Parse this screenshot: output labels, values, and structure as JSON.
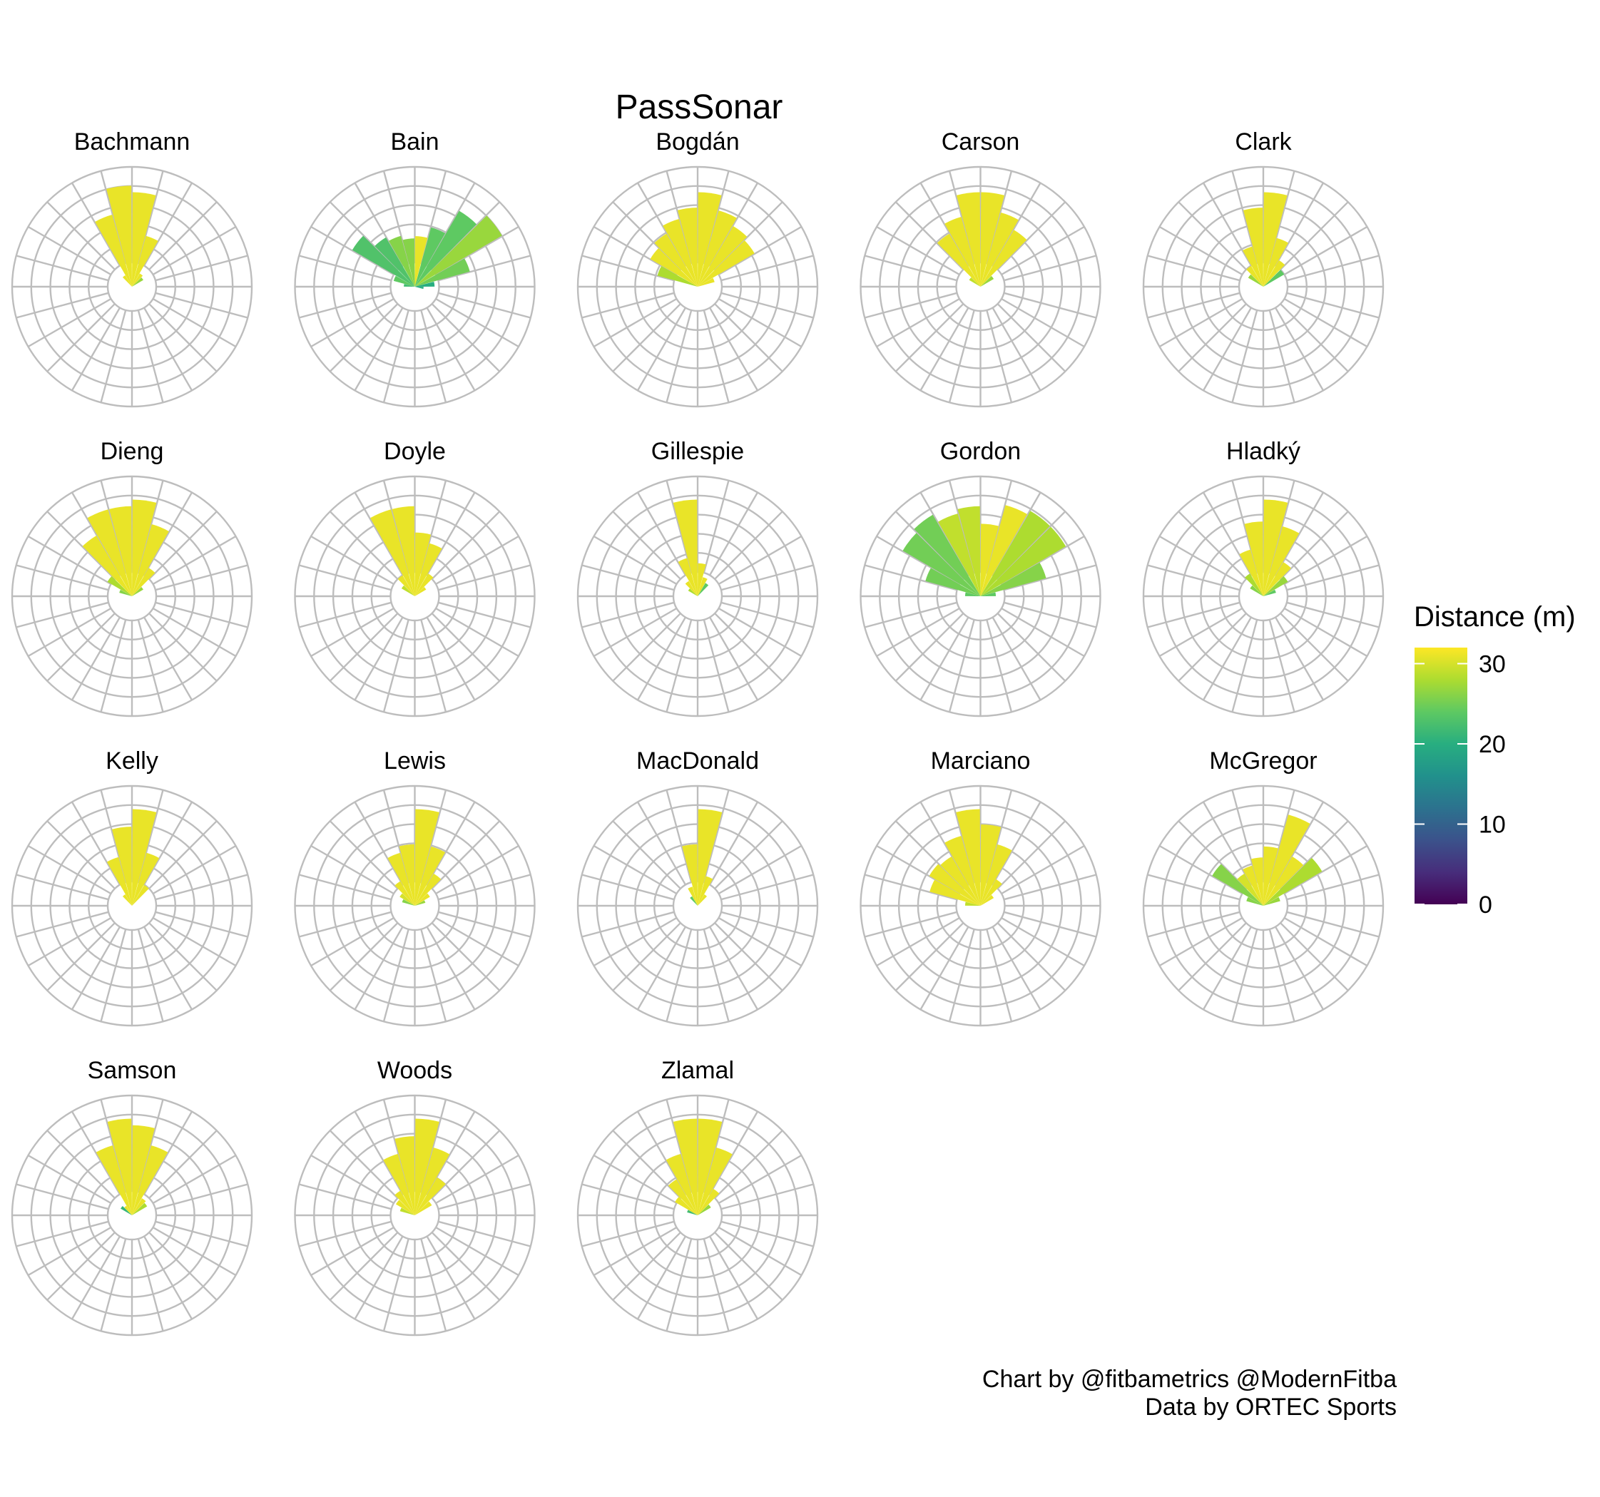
{
  "chart_data": {
    "type": "polar-bar",
    "title": "PassSonar",
    "legend": {
      "title": "Distance (m)",
      "placement": "right",
      "ticks": [
        0,
        10,
        20,
        30
      ],
      "range": [
        0,
        32
      ],
      "colormap": "viridis"
    },
    "radial_axis": {
      "max": 1.0,
      "rings": 5,
      "unit": "share of passes (relative)"
    },
    "angular_axis": {
      "bins": 24,
      "bin_width_deg": 15,
      "zero": "up",
      "direction": "clockwise"
    },
    "grid": true,
    "caption": [
      "Chart by @fitbametrics @ModernFitba",
      "Data by ORTEC Sports"
    ],
    "panels": [
      {
        "name": "Bachmann",
        "bars": [
          {
            "angle": 7.5,
            "length": 0.86,
            "distance": 31
          },
          {
            "angle": 22.5,
            "length": 0.48,
            "distance": 31
          },
          {
            "angle": 37.5,
            "length": 0.14,
            "distance": 31
          },
          {
            "angle": 52.5,
            "length": 0.12,
            "distance": 27
          },
          {
            "angle": -7.5,
            "length": 0.92,
            "distance": 31
          },
          {
            "angle": -22.5,
            "length": 0.68,
            "distance": 31
          },
          {
            "angle": -37.5,
            "length": 0.12,
            "distance": 31
          }
        ]
      },
      {
        "name": "Bain",
        "bars": [
          {
            "angle": 7.5,
            "length": 0.46,
            "distance": 31
          },
          {
            "angle": 22.5,
            "length": 0.56,
            "distance": 24
          },
          {
            "angle": 37.5,
            "length": 0.8,
            "distance": 24
          },
          {
            "angle": 52.5,
            "length": 0.92,
            "distance": 27
          },
          {
            "angle": 67.5,
            "length": 0.52,
            "distance": 25
          },
          {
            "angle": 82.5,
            "length": 0.18,
            "distance": 20
          },
          {
            "angle": 97.5,
            "length": 0.08,
            "distance": 20
          },
          {
            "angle": -7.5,
            "length": 0.44,
            "distance": 26
          },
          {
            "angle": -22.5,
            "length": 0.48,
            "distance": 26
          },
          {
            "angle": -37.5,
            "length": 0.52,
            "distance": 23
          },
          {
            "angle": -52.5,
            "length": 0.66,
            "distance": 23
          },
          {
            "angle": -67.5,
            "length": 0.2,
            "distance": 24
          },
          {
            "angle": -82.5,
            "length": 0.1,
            "distance": 22
          }
        ]
      },
      {
        "name": "Bogdán",
        "bars": [
          {
            "angle": 7.5,
            "length": 0.86,
            "distance": 31
          },
          {
            "angle": 22.5,
            "length": 0.72,
            "distance": 31
          },
          {
            "angle": 37.5,
            "length": 0.64,
            "distance": 31
          },
          {
            "angle": 52.5,
            "length": 0.6,
            "distance": 31
          },
          {
            "angle": 67.5,
            "length": 0.16,
            "distance": 31
          },
          {
            "angle": -7.5,
            "length": 0.72,
            "distance": 31
          },
          {
            "angle": -22.5,
            "length": 0.64,
            "distance": 31
          },
          {
            "angle": -37.5,
            "length": 0.56,
            "distance": 31
          },
          {
            "angle": -52.5,
            "length": 0.5,
            "distance": 31
          },
          {
            "angle": -67.5,
            "length": 0.38,
            "distance": 28
          }
        ]
      },
      {
        "name": "Carson",
        "bars": [
          {
            "angle": 7.5,
            "length": 0.86,
            "distance": 31
          },
          {
            "angle": 22.5,
            "length": 0.7,
            "distance": 31
          },
          {
            "angle": 37.5,
            "length": 0.6,
            "distance": 31
          },
          {
            "angle": 52.5,
            "length": 0.14,
            "distance": 27
          },
          {
            "angle": -7.5,
            "length": 0.86,
            "distance": 31
          },
          {
            "angle": -22.5,
            "length": 0.66,
            "distance": 31
          },
          {
            "angle": -37.5,
            "length": 0.56,
            "distance": 31
          },
          {
            "angle": -52.5,
            "length": 0.12,
            "distance": 29
          }
        ]
      },
      {
        "name": "Clark",
        "bars": [
          {
            "angle": 7.5,
            "length": 0.86,
            "distance": 31
          },
          {
            "angle": 22.5,
            "length": 0.46,
            "distance": 31
          },
          {
            "angle": 37.5,
            "length": 0.28,
            "distance": 31
          },
          {
            "angle": 52.5,
            "length": 0.22,
            "distance": 24
          },
          {
            "angle": -7.5,
            "length": 0.72,
            "distance": 31
          },
          {
            "angle": -22.5,
            "length": 0.38,
            "distance": 31
          },
          {
            "angle": -37.5,
            "length": 0.22,
            "distance": 31
          },
          {
            "angle": -52.5,
            "length": 0.16,
            "distance": 27
          }
        ]
      },
      {
        "name": "Dieng",
        "bars": [
          {
            "angle": 7.5,
            "length": 0.88,
            "distance": 31
          },
          {
            "angle": 22.5,
            "length": 0.68,
            "distance": 31
          },
          {
            "angle": 37.5,
            "length": 0.3,
            "distance": 31
          },
          {
            "angle": 52.5,
            "length": 0.12,
            "distance": 27
          },
          {
            "angle": -7.5,
            "length": 0.82,
            "distance": 31
          },
          {
            "angle": -22.5,
            "length": 0.82,
            "distance": 31
          },
          {
            "angle": -37.5,
            "length": 0.64,
            "distance": 31
          },
          {
            "angle": -52.5,
            "length": 0.26,
            "distance": 28
          },
          {
            "angle": -67.5,
            "length": 0.12,
            "distance": 26
          }
        ]
      },
      {
        "name": "Doyle",
        "bars": [
          {
            "angle": 7.5,
            "length": 0.58,
            "distance": 31
          },
          {
            "angle": 22.5,
            "length": 0.5,
            "distance": 31
          },
          {
            "angle": 37.5,
            "length": 0.24,
            "distance": 31
          },
          {
            "angle": 52.5,
            "length": 0.12,
            "distance": 31
          },
          {
            "angle": -7.5,
            "length": 0.82,
            "distance": 31
          },
          {
            "angle": -22.5,
            "length": 0.82,
            "distance": 31
          },
          {
            "angle": -37.5,
            "length": 0.22,
            "distance": 31
          },
          {
            "angle": -52.5,
            "length": 0.14,
            "distance": 29
          }
        ]
      },
      {
        "name": "Gillespie",
        "bars": [
          {
            "angle": 7.5,
            "length": 0.3,
            "distance": 31
          },
          {
            "angle": 22.5,
            "length": 0.18,
            "distance": 31
          },
          {
            "angle": 37.5,
            "length": 0.14,
            "distance": 24
          },
          {
            "angle": -7.5,
            "length": 0.88,
            "distance": 31
          },
          {
            "angle": -22.5,
            "length": 0.36,
            "distance": 31
          },
          {
            "angle": -37.5,
            "length": 0.16,
            "distance": 31
          },
          {
            "angle": -52.5,
            "length": 0.1,
            "distance": 28
          }
        ]
      },
      {
        "name": "Gordon",
        "bars": [
          {
            "angle": 7.5,
            "length": 0.66,
            "distance": 31
          },
          {
            "angle": 22.5,
            "length": 0.86,
            "distance": 31
          },
          {
            "angle": 37.5,
            "length": 0.9,
            "distance": 28
          },
          {
            "angle": 52.5,
            "length": 0.9,
            "distance": 28
          },
          {
            "angle": 67.5,
            "length": 0.62,
            "distance": 26
          },
          {
            "angle": 82.5,
            "length": 0.14,
            "distance": 24
          },
          {
            "angle": -7.5,
            "length": 0.82,
            "distance": 29
          },
          {
            "angle": -22.5,
            "length": 0.78,
            "distance": 29
          },
          {
            "angle": -37.5,
            "length": 0.86,
            "distance": 25
          },
          {
            "angle": -52.5,
            "length": 0.82,
            "distance": 25
          },
          {
            "angle": -67.5,
            "length": 0.52,
            "distance": 25
          },
          {
            "angle": -82.5,
            "length": 0.14,
            "distance": 24
          }
        ]
      },
      {
        "name": "Hladký",
        "bars": [
          {
            "angle": 7.5,
            "length": 0.88,
            "distance": 31
          },
          {
            "angle": 22.5,
            "length": 0.66,
            "distance": 31
          },
          {
            "angle": 37.5,
            "length": 0.36,
            "distance": 31
          },
          {
            "angle": 52.5,
            "length": 0.26,
            "distance": 27
          },
          {
            "angle": 67.5,
            "length": 0.12,
            "distance": 24
          },
          {
            "angle": -7.5,
            "length": 0.68,
            "distance": 31
          },
          {
            "angle": -22.5,
            "length": 0.44,
            "distance": 31
          },
          {
            "angle": -37.5,
            "length": 0.24,
            "distance": 28
          },
          {
            "angle": -52.5,
            "length": 0.14,
            "distance": 26
          }
        ]
      },
      {
        "name": "Kelly",
        "bars": [
          {
            "angle": 7.5,
            "length": 0.88,
            "distance": 31
          },
          {
            "angle": 22.5,
            "length": 0.5,
            "distance": 31
          },
          {
            "angle": 37.5,
            "length": 0.22,
            "distance": 31
          },
          {
            "angle": -7.5,
            "length": 0.72,
            "distance": 31
          },
          {
            "angle": -22.5,
            "length": 0.46,
            "distance": 31
          },
          {
            "angle": -37.5,
            "length": 0.12,
            "distance": 31
          }
        ]
      },
      {
        "name": "Lewis",
        "bars": [
          {
            "angle": 7.5,
            "length": 0.88,
            "distance": 31
          },
          {
            "angle": 22.5,
            "length": 0.56,
            "distance": 31
          },
          {
            "angle": 37.5,
            "length": 0.34,
            "distance": 31
          },
          {
            "angle": 52.5,
            "length": 0.16,
            "distance": 31
          },
          {
            "angle": 67.5,
            "length": 0.1,
            "distance": 27
          },
          {
            "angle": -7.5,
            "length": 0.56,
            "distance": 31
          },
          {
            "angle": -22.5,
            "length": 0.5,
            "distance": 31
          },
          {
            "angle": -37.5,
            "length": 0.26,
            "distance": 31
          },
          {
            "angle": -52.5,
            "length": 0.16,
            "distance": 30
          },
          {
            "angle": -67.5,
            "length": 0.12,
            "distance": 26
          }
        ]
      },
      {
        "name": "MacDonald",
        "bars": [
          {
            "angle": 7.5,
            "length": 0.88,
            "distance": 31
          },
          {
            "angle": 22.5,
            "length": 0.28,
            "distance": 31
          },
          {
            "angle": 37.5,
            "length": 0.12,
            "distance": 31
          },
          {
            "angle": -7.5,
            "length": 0.56,
            "distance": 31
          },
          {
            "angle": -22.5,
            "length": 0.18,
            "distance": 31
          },
          {
            "angle": -37.5,
            "length": 0.1,
            "distance": 24
          }
        ]
      },
      {
        "name": "Marciano",
        "bars": [
          {
            "angle": 7.5,
            "length": 0.74,
            "distance": 31
          },
          {
            "angle": 22.5,
            "length": 0.58,
            "distance": 31
          },
          {
            "angle": 37.5,
            "length": 0.28,
            "distance": 31
          },
          {
            "angle": 52.5,
            "length": 0.14,
            "distance": 31
          },
          {
            "angle": -7.5,
            "length": 0.88,
            "distance": 31
          },
          {
            "angle": -22.5,
            "length": 0.66,
            "distance": 31
          },
          {
            "angle": -37.5,
            "length": 0.52,
            "distance": 31
          },
          {
            "angle": -52.5,
            "length": 0.54,
            "distance": 31
          },
          {
            "angle": -67.5,
            "length": 0.48,
            "distance": 31
          },
          {
            "angle": -82.5,
            "length": 0.14,
            "distance": 29
          }
        ]
      },
      {
        "name": "McGregor",
        "bars": [
          {
            "angle": 7.5,
            "length": 0.54,
            "distance": 31
          },
          {
            "angle": 22.5,
            "length": 0.86,
            "distance": 31
          },
          {
            "angle": 37.5,
            "length": 0.52,
            "distance": 31
          },
          {
            "angle": 52.5,
            "length": 0.62,
            "distance": 28
          },
          {
            "angle": 67.5,
            "length": 0.16,
            "distance": 27
          },
          {
            "angle": -7.5,
            "length": 0.44,
            "distance": 31
          },
          {
            "angle": -22.5,
            "length": 0.38,
            "distance": 31
          },
          {
            "angle": -37.5,
            "length": 0.34,
            "distance": 30
          },
          {
            "angle": -52.5,
            "length": 0.54,
            "distance": 26
          },
          {
            "angle": -67.5,
            "length": 0.16,
            "distance": 26
          }
        ]
      },
      {
        "name": "Samson",
        "bars": [
          {
            "angle": 7.5,
            "length": 0.82,
            "distance": 31
          },
          {
            "angle": 22.5,
            "length": 0.66,
            "distance": 31
          },
          {
            "angle": 37.5,
            "length": 0.18,
            "distance": 31
          },
          {
            "angle": 52.5,
            "length": 0.16,
            "distance": 28
          },
          {
            "angle": -7.5,
            "length": 0.88,
            "distance": 31
          },
          {
            "angle": -22.5,
            "length": 0.66,
            "distance": 31
          },
          {
            "angle": -37.5,
            "length": 0.1,
            "distance": 31
          },
          {
            "angle": -52.5,
            "length": 0.12,
            "distance": 21
          }
        ]
      },
      {
        "name": "Woods",
        "bars": [
          {
            "angle": 7.5,
            "length": 0.88,
            "distance": 31
          },
          {
            "angle": 22.5,
            "length": 0.64,
            "distance": 31
          },
          {
            "angle": 37.5,
            "length": 0.4,
            "distance": 31
          },
          {
            "angle": 52.5,
            "length": 0.18,
            "distance": 31
          },
          {
            "angle": -7.5,
            "length": 0.72,
            "distance": 31
          },
          {
            "angle": -22.5,
            "length": 0.58,
            "distance": 31
          },
          {
            "angle": -37.5,
            "length": 0.26,
            "distance": 31
          },
          {
            "angle": -52.5,
            "length": 0.2,
            "distance": 31
          },
          {
            "angle": -67.5,
            "length": 0.14,
            "distance": 29
          }
        ]
      },
      {
        "name": "Zlamal",
        "bars": [
          {
            "angle": 7.5,
            "length": 0.88,
            "distance": 31
          },
          {
            "angle": 22.5,
            "length": 0.64,
            "distance": 31
          },
          {
            "angle": 37.5,
            "length": 0.28,
            "distance": 31
          },
          {
            "angle": 52.5,
            "length": 0.14,
            "distance": 27
          },
          {
            "angle": -7.5,
            "length": 0.88,
            "distance": 31
          },
          {
            "angle": -22.5,
            "length": 0.58,
            "distance": 31
          },
          {
            "angle": -37.5,
            "length": 0.38,
            "distance": 31
          },
          {
            "angle": -52.5,
            "length": 0.24,
            "distance": 31
          },
          {
            "angle": -67.5,
            "length": 0.1,
            "distance": 22
          }
        ]
      }
    ]
  }
}
